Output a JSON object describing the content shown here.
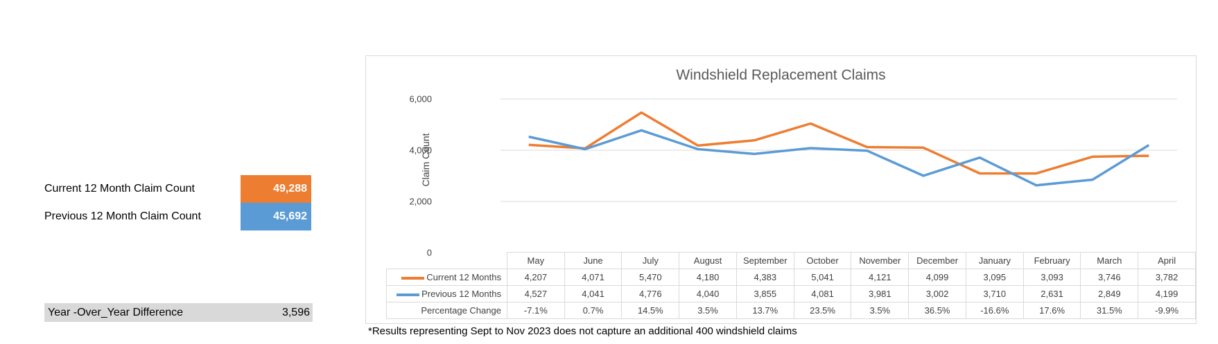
{
  "summary": {
    "current_label": "Current 12 Month Claim Count",
    "current_value": "49,288",
    "previous_label": "Previous 12 Month Claim Count",
    "previous_value": "45,692",
    "yoy_label": "Year -Over_Year Difference",
    "yoy_value": "3,596"
  },
  "colors": {
    "current": "#ed7d31",
    "previous": "#5b9bd5",
    "grid": "#d9d9d9"
  },
  "chart_data": {
    "type": "line",
    "title": "Windshield Replacement Claims",
    "xlabel": "",
    "ylabel": "Claim Count",
    "ylim": [
      0,
      6000
    ],
    "yticks": [
      "0",
      "2,000",
      "4,000",
      "6,000"
    ],
    "grid": true,
    "legend": "data-table",
    "categories": [
      "May",
      "June",
      "July",
      "August",
      "September",
      "October",
      "November",
      "December",
      "January",
      "February",
      "March",
      "April"
    ],
    "series": [
      {
        "name": "Current 12 Months",
        "values": [
          4207,
          4071,
          5470,
          4180,
          4383,
          5041,
          4121,
          4099,
          3095,
          3093,
          3746,
          3782
        ],
        "labels": [
          "4,207",
          "4,071",
          "5,470",
          "4,180",
          "4,383",
          "5,041",
          "4,121",
          "4,099",
          "3,095",
          "3,093",
          "3,746",
          "3,782"
        ]
      },
      {
        "name": "Previous 12 Months",
        "values": [
          4527,
          4041,
          4776,
          4040,
          3855,
          4081,
          3981,
          3002,
          3710,
          2631,
          2849,
          4199
        ],
        "labels": [
          "4,527",
          "4,041",
          "4,776",
          "4,040",
          "3,855",
          "4,081",
          "3,981",
          "3,002",
          "3,710",
          "2,631",
          "2,849",
          "4,199"
        ]
      }
    ],
    "table_rows": [
      {
        "name": "Percentage Change",
        "labels": [
          "-7.1%",
          "0.7%",
          "14.5%",
          "3.5%",
          "13.7%",
          "23.5%",
          "3.5%",
          "36.5%",
          "-16.6%",
          "17.6%",
          "31.5%",
          "-9.9%"
        ]
      }
    ]
  },
  "footnote": "*Results representing Sept to Nov 2023 does not capture an additional 400 windshield claims"
}
